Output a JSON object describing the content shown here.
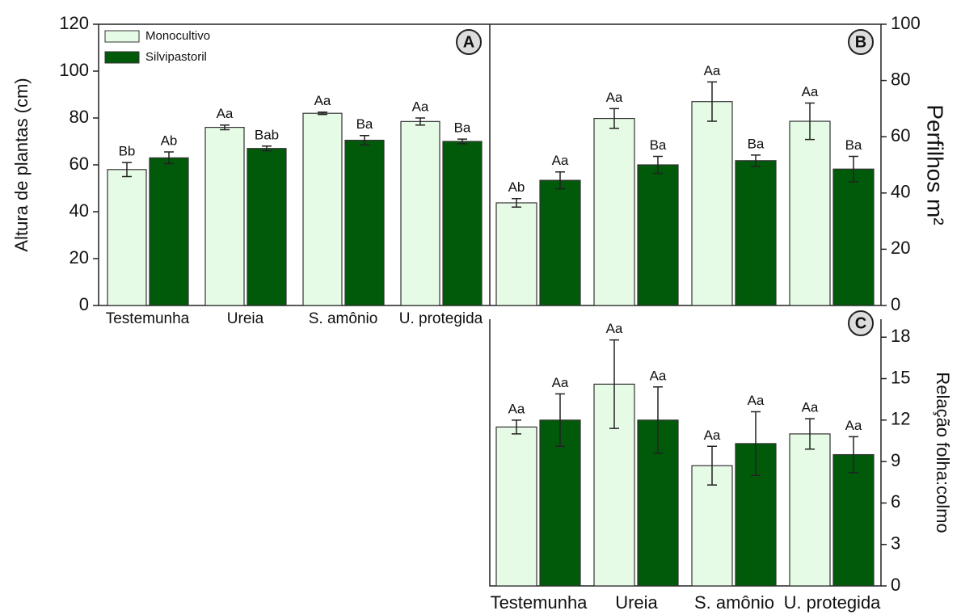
{
  "chart_data": [
    {
      "type": "bar",
      "panel": "A",
      "ylabel": "Altura de plantas (cm)",
      "categories": [
        "Testemunha",
        "Ureia",
        "S. amônio",
        "U. protegida"
      ],
      "ylim": [
        0,
        120
      ],
      "yticks": [
        0,
        20,
        40,
        60,
        80,
        100,
        120
      ],
      "series": [
        {
          "name": "Monocultivo",
          "color": "#e5fbe5",
          "values": [
            58,
            76,
            82,
            78.5
          ],
          "errors": [
            3,
            1,
            0.5,
            1.5
          ],
          "letters": [
            "Bb",
            "Aa",
            "Aa",
            "Aa"
          ]
        },
        {
          "name": "Silvipastoril",
          "color": "#005a0a",
          "values": [
            63,
            67,
            70.5,
            70
          ],
          "errors": [
            2.5,
            1,
            2,
            1
          ],
          "letters": [
            "Ab",
            "Bab",
            "Ba",
            "Ba"
          ]
        }
      ]
    },
    {
      "type": "bar",
      "panel": "B",
      "ylabel": "Perfilhos m²",
      "ylim": [
        0,
        100
      ],
      "yticks": [
        0,
        20,
        40,
        60,
        80,
        100
      ],
      "series": [
        {
          "color": "#e5fbe5",
          "values": [
            36.5,
            66.5,
            72.5,
            65.5
          ],
          "errors": [
            1.5,
            3.5,
            7,
            6.5
          ],
          "letters": [
            "Ab",
            "Aa",
            "Aa",
            "Aa"
          ]
        },
        {
          "color": "#005a0a",
          "values": [
            44.5,
            50,
            51.5,
            48.5
          ],
          "errors": [
            3,
            3,
            2,
            4.5
          ],
          "letters": [
            "Aa",
            "Ba",
            "Ba",
            "Ba"
          ]
        }
      ]
    },
    {
      "type": "bar",
      "panel": "C",
      "ylabel": "Relação folha:colmo",
      "categories": [
        "Testemunha",
        "Ureia",
        "S. amônio",
        "U. protegida"
      ],
      "ylim": [
        0,
        19.3
      ],
      "yticks": [
        0,
        3,
        6,
        9,
        12,
        15,
        18
      ],
      "series": [
        {
          "color": "#e5fbe5",
          "values": [
            11.5,
            14.6,
            8.7,
            11
          ],
          "errors": [
            0.5,
            3.2,
            1.4,
            1.1
          ],
          "letters": [
            "Aa",
            "Aa",
            "Aa",
            "Aa"
          ]
        },
        {
          "color": "#005a0a",
          "values": [
            12,
            12,
            10.3,
            9.5
          ],
          "errors": [
            1.9,
            2.4,
            2.3,
            1.3
          ],
          "letters": [
            "Aa",
            "Aa",
            "Aa",
            "Aa"
          ]
        }
      ]
    }
  ]
}
